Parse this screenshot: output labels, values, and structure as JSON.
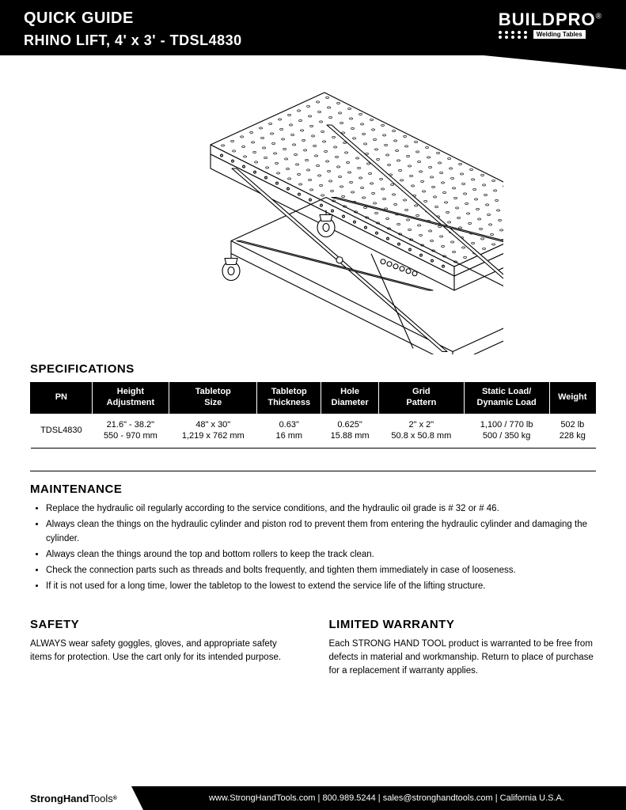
{
  "header": {
    "quick_guide": "QUICK GUIDE",
    "product_title": "RHINO LIFT, 4' x 3' - TDSL4830",
    "logo_brand": "BUILDPRO",
    "logo_reg": "®",
    "logo_tag": "Welding Tables"
  },
  "specs": {
    "title": "SPECIFICATIONS",
    "columns": [
      "PN",
      "Height\nAdjustment",
      "Tabletop\nSize",
      "Tabletop\nThickness",
      "Hole\nDiameter",
      "Grid\nPattern",
      "Static Load/\nDynamic Load",
      "Weight"
    ],
    "row": {
      "pn": "TDSL4830",
      "height": "21.6\" - 38.2\"\n550 - 970 mm",
      "size": "48\" x 30\"\n1,219 x 762 mm",
      "thickness": "0.63\"\n16 mm",
      "hole": "0.625\"\n15.88 mm",
      "grid": "2\" x 2\"\n50.8 x 50.8 mm",
      "load": "1,100 / 770 lb\n500 / 350 kg",
      "weight": "502 lb\n228 kg"
    }
  },
  "maintenance": {
    "title": "MAINTENANCE",
    "items": [
      "Replace the hydraulic oil regularly according to the service conditions, and the hydraulic oil grade is # 32 or # 46.",
      "Always clean the things on the hydraulic cylinder and piston rod to prevent them from entering the hydraulic cylinder and damaging the cylinder.",
      "Always clean the things around the top and bottom rollers to keep the track clean.",
      "Check the connection parts such as threads and bolts frequently, and tighten them immediately in case of looseness.",
      "If it is not used for a long time, lower the tabletop to the lowest to extend the service life of the lifting structure."
    ]
  },
  "safety": {
    "title": "SAFETY",
    "body": "ALWAYS wear safety goggles, gloves, and appropriate safety items for protection. Use the cart only for its intended purpose."
  },
  "warranty": {
    "title": "LIMITED WARRANTY",
    "body": "Each STRONG HAND TOOL product is warranted to be free from defects in material and workmanship. Return to place of purchase for a replacement if warranty applies."
  },
  "footer": {
    "logo_strong": "StrongHand",
    "logo_tools": "Tools",
    "reg": "®",
    "text": "www.StrongHandTools.com  |  800.989.5244  |  sales@stronghandtools.com  |  California U.S.A."
  },
  "illustration": {
    "stroke": "#000000",
    "stroke_width": 1.1,
    "table_cols": 22,
    "table_rows": 12,
    "hole_radius": 2.0
  }
}
